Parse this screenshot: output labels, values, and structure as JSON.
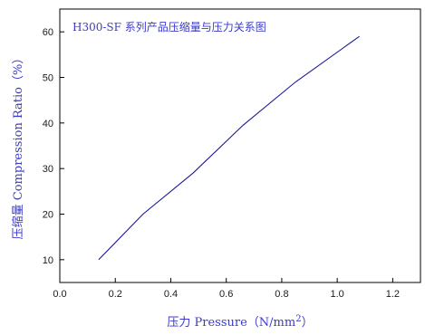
{
  "chart_data": {
    "type": "line",
    "title": "H300-SF 系列产品压缩量与压力关系图",
    "xlabel_prefix": "压力 Pressure（N/mm",
    "xlabel_sup": "2",
    "xlabel_suffix": "）",
    "ylabel": "压缩量 Compression Ratio（%）",
    "xlim": [
      0.0,
      1.3
    ],
    "ylim": [
      5,
      65
    ],
    "xticks": [
      0.0,
      0.2,
      0.4,
      0.6,
      0.8,
      1.0,
      1.2
    ],
    "xtick_labels": [
      "0.0",
      "0.2",
      "0.4",
      "0.6",
      "0.8",
      "1.0",
      "1.2"
    ],
    "yticks": [
      10,
      20,
      30,
      40,
      50,
      60
    ],
    "ytick_labels": [
      "10",
      "20",
      "30",
      "40",
      "50",
      "60"
    ],
    "grid": false,
    "series": [
      {
        "x": [
          0.14,
          0.3,
          0.48,
          0.66,
          0.85,
          1.08
        ],
        "y": [
          10,
          20,
          29,
          39.5,
          49,
          59
        ]
      }
    ]
  },
  "colors": {
    "line": "#1a1a99",
    "axis": "#000000",
    "title_text": "#3a3acc"
  }
}
